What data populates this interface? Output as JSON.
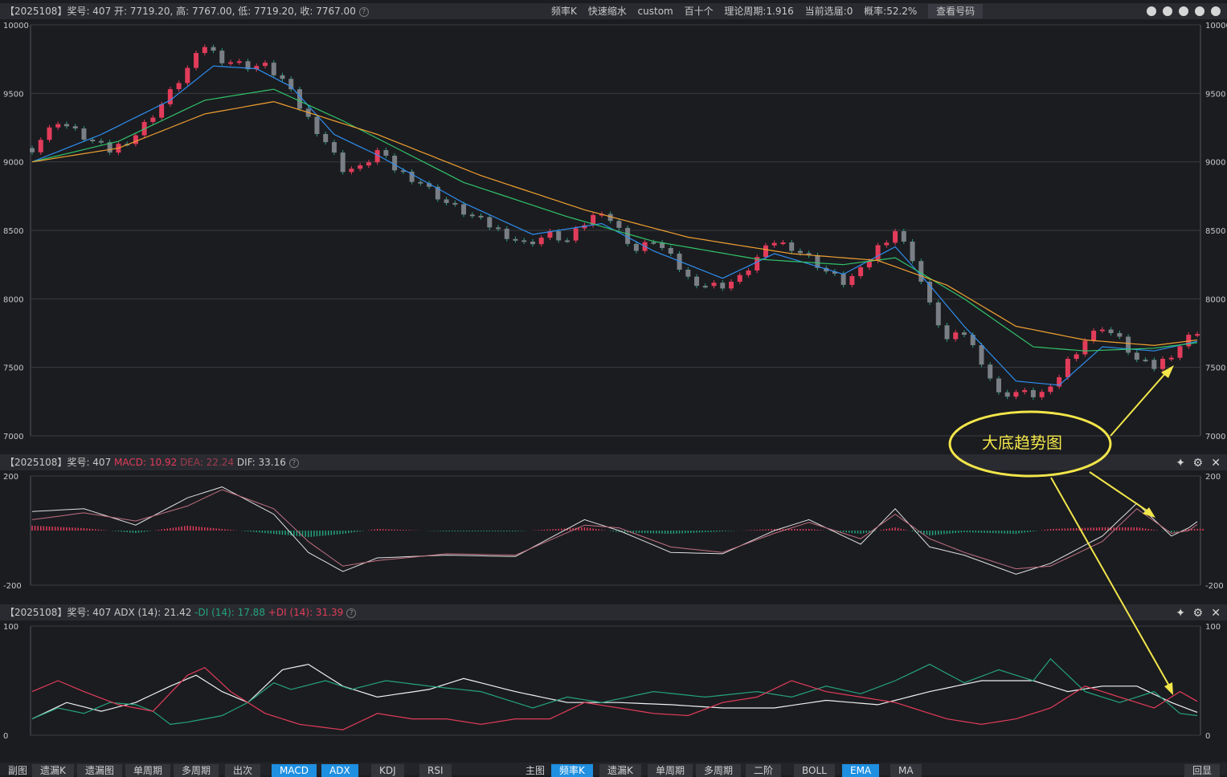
{
  "header_main": {
    "info": "【2025108】奖号: 407   开: 7719.20, 高: 7767.00, 低: 7719.20, 收: 7767.00",
    "help_icon": "question-icon",
    "items": [
      "频率K",
      "快速缩水",
      "custom",
      "百十个",
      "理论周期:1.916",
      "当前选届:0",
      "概率:52.2%"
    ],
    "query_button": "查看号码",
    "icons": [
      "compass-icon",
      "refresh-icon",
      "up-icon",
      "down-icon",
      "settings-icon"
    ]
  },
  "header_macd": {
    "prefix": "【2025108】奖号: 407",
    "macd": "MACD: 10.92",
    "dea": "DEA: 22.24",
    "dif": "DIF: 33.16"
  },
  "header_adx": {
    "prefix": "【2025108】奖号: 407  ADX (14): 21.42",
    "mdi": "-DI (14): 17.88",
    "pdi": "+DI (14): 31.39"
  },
  "annotation": {
    "text": "大底趋势图"
  },
  "bottom_tabs": {
    "left_label": "副图",
    "left": [
      {
        "label": "遗漏K",
        "active": false
      },
      {
        "label": "遗漏图",
        "active": false
      },
      {
        "label": "单周期",
        "active": false
      },
      {
        "label": "多周期",
        "active": false
      },
      {
        "label": "出次",
        "active": false
      },
      {
        "label": "MACD",
        "active": true
      },
      {
        "label": "ADX",
        "active": true
      },
      {
        "label": "KDJ",
        "active": false
      },
      {
        "label": "RSI",
        "active": false
      }
    ],
    "right_label": "主图",
    "right": [
      {
        "label": "频率K",
        "active": true
      },
      {
        "label": "遗漏K",
        "active": false
      },
      {
        "label": "单周期",
        "active": false
      },
      {
        "label": "多周期",
        "active": false
      },
      {
        "label": "二阶",
        "active": false
      },
      {
        "label": "BOLL",
        "active": false
      },
      {
        "label": "EMA",
        "active": true
      },
      {
        "label": "MA",
        "active": false
      }
    ],
    "end": "回显"
  },
  "chart_data": [
    {
      "type": "candlestick",
      "ylim": [
        7000,
        10000
      ],
      "yticks": [
        10000,
        9500,
        9000,
        8500,
        8000,
        7500,
        7000
      ],
      "colors": {
        "up": "#e23c5a",
        "down": "#24a37d",
        "ema_fast": "#2f8ff0",
        "ema_mid": "#30c46a",
        "ema_slow": "#f0a030"
      },
      "close_path": [
        [
          0,
          9100
        ],
        [
          3,
          9300
        ],
        [
          6,
          9180
        ],
        [
          9,
          9080
        ],
        [
          12,
          9200
        ],
        [
          15,
          9420
        ],
        [
          18,
          9680
        ],
        [
          20,
          9850
        ],
        [
          22,
          9750
        ],
        [
          25,
          9700
        ],
        [
          27,
          9700
        ],
        [
          29,
          9600
        ],
        [
          31,
          9400
        ],
        [
          34,
          9150
        ],
        [
          36,
          8950
        ],
        [
          38,
          8950
        ],
        [
          40,
          9080
        ],
        [
          42,
          8950
        ],
        [
          45,
          8850
        ],
        [
          48,
          8700
        ],
        [
          51,
          8600
        ],
        [
          54,
          8500
        ],
        [
          57,
          8400
        ],
        [
          60,
          8470
        ],
        [
          62,
          8420
        ],
        [
          64,
          8550
        ],
        [
          66,
          8650
        ],
        [
          68,
          8500
        ],
        [
          70,
          8350
        ],
        [
          72,
          8430
        ],
        [
          74,
          8300
        ],
        [
          76,
          8150
        ],
        [
          78,
          8100
        ],
        [
          80,
          8100
        ],
        [
          82,
          8150
        ],
        [
          84,
          8300
        ],
        [
          86,
          8420
        ],
        [
          88,
          8380
        ],
        [
          90,
          8300
        ],
        [
          92,
          8200
        ],
        [
          94,
          8120
        ],
        [
          96,
          8200
        ],
        [
          98,
          8380
        ],
        [
          100,
          8500
        ],
        [
          102,
          8300
        ],
        [
          104,
          7950
        ],
        [
          106,
          7700
        ],
        [
          108,
          7750
        ],
        [
          110,
          7550
        ],
        [
          112,
          7300
        ],
        [
          114,
          7320
        ],
        [
          116,
          7300
        ],
        [
          118,
          7330
        ],
        [
          120,
          7550
        ],
        [
          122,
          7700
        ],
        [
          124,
          7800
        ],
        [
          126,
          7700
        ],
        [
          128,
          7550
        ],
        [
          130,
          7500
        ],
        [
          132,
          7600
        ],
        [
          134,
          7720
        ],
        [
          135,
          7767
        ]
      ],
      "ema_fast": [
        [
          0,
          9000
        ],
        [
          8,
          9200
        ],
        [
          16,
          9450
        ],
        [
          21,
          9700
        ],
        [
          26,
          9680
        ],
        [
          30,
          9550
        ],
        [
          35,
          9200
        ],
        [
          40,
          9050
        ],
        [
          50,
          8700
        ],
        [
          58,
          8470
        ],
        [
          66,
          8550
        ],
        [
          72,
          8350
        ],
        [
          80,
          8150
        ],
        [
          86,
          8330
        ],
        [
          94,
          8180
        ],
        [
          100,
          8380
        ],
        [
          104,
          8100
        ],
        [
          108,
          7800
        ],
        [
          114,
          7400
        ],
        [
          119,
          7370
        ],
        [
          124,
          7650
        ],
        [
          130,
          7620
        ],
        [
          135,
          7690
        ]
      ],
      "ema_mid": [
        [
          0,
          9000
        ],
        [
          10,
          9150
        ],
        [
          20,
          9450
        ],
        [
          28,
          9530
        ],
        [
          36,
          9300
        ],
        [
          50,
          8850
        ],
        [
          62,
          8600
        ],
        [
          72,
          8420
        ],
        [
          84,
          8290
        ],
        [
          94,
          8250
        ],
        [
          100,
          8300
        ],
        [
          108,
          8000
        ],
        [
          116,
          7650
        ],
        [
          122,
          7620
        ],
        [
          130,
          7640
        ],
        [
          135,
          7680
        ]
      ],
      "ema_slow": [
        [
          0,
          9000
        ],
        [
          10,
          9100
        ],
        [
          20,
          9350
        ],
        [
          28,
          9440
        ],
        [
          40,
          9200
        ],
        [
          52,
          8900
        ],
        [
          64,
          8650
        ],
        [
          76,
          8450
        ],
        [
          88,
          8330
        ],
        [
          98,
          8280
        ],
        [
          106,
          8100
        ],
        [
          114,
          7800
        ],
        [
          122,
          7700
        ],
        [
          130,
          7660
        ],
        [
          135,
          7700
        ]
      ]
    },
    {
      "type": "line",
      "title": "MACD",
      "ylim": [
        -200,
        200
      ],
      "yticks": [
        200,
        -200
      ],
      "series": [
        {
          "name": "DIF",
          "color": "#e0e0e0",
          "values": [
            [
              0,
              70
            ],
            [
              6,
              80
            ],
            [
              12,
              20
            ],
            [
              18,
              120
            ],
            [
              22,
              160
            ],
            [
              28,
              60
            ],
            [
              32,
              -80
            ],
            [
              36,
              -150
            ],
            [
              40,
              -100
            ],
            [
              48,
              -90
            ],
            [
              56,
              -95
            ],
            [
              64,
              40
            ],
            [
              68,
              0
            ],
            [
              74,
              -80
            ],
            [
              80,
              -85
            ],
            [
              86,
              0
            ],
            [
              90,
              40
            ],
            [
              96,
              -50
            ],
            [
              100,
              80
            ],
            [
              104,
              -60
            ],
            [
              108,
              -90
            ],
            [
              114,
              -160
            ],
            [
              118,
              -120
            ],
            [
              124,
              -20
            ],
            [
              128,
              100
            ],
            [
              132,
              -20
            ],
            [
              134,
              10
            ],
            [
              135,
              33
            ]
          ]
        },
        {
          "name": "DEA",
          "color": "#c07080",
          "values": [
            [
              0,
              40
            ],
            [
              6,
              65
            ],
            [
              12,
              35
            ],
            [
              18,
              90
            ],
            [
              22,
              150
            ],
            [
              28,
              80
            ],
            [
              32,
              -40
            ],
            [
              36,
              -130
            ],
            [
              40,
              -110
            ],
            [
              48,
              -85
            ],
            [
              56,
              -90
            ],
            [
              64,
              20
            ],
            [
              68,
              10
            ],
            [
              74,
              -60
            ],
            [
              80,
              -80
            ],
            [
              86,
              -10
            ],
            [
              90,
              30
            ],
            [
              96,
              -30
            ],
            [
              100,
              60
            ],
            [
              104,
              -30
            ],
            [
              108,
              -80
            ],
            [
              114,
              -140
            ],
            [
              118,
              -130
            ],
            [
              124,
              -40
            ],
            [
              128,
              80
            ],
            [
              132,
              -10
            ],
            [
              134,
              0
            ],
            [
              135,
              22
            ]
          ]
        }
      ]
    },
    {
      "type": "line",
      "title": "ADX",
      "ylim": [
        0,
        100
      ],
      "yticks": [
        100,
        0
      ],
      "series": [
        {
          "name": "ADX",
          "color": "#f0f0f0",
          "values": [
            [
              0,
              15
            ],
            [
              4,
              30
            ],
            [
              8,
              22
            ],
            [
              12,
              30
            ],
            [
              16,
              45
            ],
            [
              19,
              55
            ],
            [
              22,
              40
            ],
            [
              25,
              30
            ],
            [
              29,
              60
            ],
            [
              32,
              65
            ],
            [
              36,
              45
            ],
            [
              40,
              35
            ],
            [
              46,
              42
            ],
            [
              50,
              52
            ],
            [
              56,
              40
            ],
            [
              62,
              30
            ],
            [
              68,
              30
            ],
            [
              74,
              28
            ],
            [
              80,
              25
            ],
            [
              86,
              25
            ],
            [
              92,
              32
            ],
            [
              98,
              28
            ],
            [
              104,
              40
            ],
            [
              110,
              50
            ],
            [
              116,
              50
            ],
            [
              120,
              40
            ],
            [
              124,
              45
            ],
            [
              128,
              45
            ],
            [
              132,
              30
            ],
            [
              135,
              21
            ]
          ]
        },
        {
          "name": "-DI",
          "color": "#24a37d",
          "values": [
            [
              0,
              15
            ],
            [
              3,
              25
            ],
            [
              6,
              20
            ],
            [
              9,
              30
            ],
            [
              12,
              28
            ],
            [
              14,
              22
            ],
            [
              16,
              10
            ],
            [
              18,
              12
            ],
            [
              22,
              18
            ],
            [
              25,
              30
            ],
            [
              28,
              48
            ],
            [
              30,
              42
            ],
            [
              34,
              50
            ],
            [
              37,
              42
            ],
            [
              41,
              50
            ],
            [
              46,
              45
            ],
            [
              52,
              40
            ],
            [
              58,
              25
            ],
            [
              62,
              35
            ],
            [
              66,
              30
            ],
            [
              72,
              40
            ],
            [
              78,
              35
            ],
            [
              84,
              40
            ],
            [
              88,
              35
            ],
            [
              92,
              45
            ],
            [
              96,
              38
            ],
            [
              100,
              50
            ],
            [
              104,
              65
            ],
            [
              108,
              48
            ],
            [
              112,
              60
            ],
            [
              116,
              50
            ],
            [
              118,
              70
            ],
            [
              122,
              40
            ],
            [
              126,
              30
            ],
            [
              130,
              40
            ],
            [
              133,
              20
            ],
            [
              135,
              18
            ]
          ]
        },
        {
          "name": "+DI",
          "color": "#e23c5a",
          "values": [
            [
              0,
              40
            ],
            [
              3,
              50
            ],
            [
              6,
              40
            ],
            [
              10,
              28
            ],
            [
              14,
              22
            ],
            [
              18,
              55
            ],
            [
              20,
              62
            ],
            [
              23,
              40
            ],
            [
              27,
              20
            ],
            [
              31,
              10
            ],
            [
              36,
              5
            ],
            [
              40,
              20
            ],
            [
              44,
              15
            ],
            [
              48,
              15
            ],
            [
              52,
              10
            ],
            [
              56,
              15
            ],
            [
              60,
              15
            ],
            [
              64,
              30
            ],
            [
              68,
              25
            ],
            [
              72,
              20
            ],
            [
              76,
              18
            ],
            [
              80,
              30
            ],
            [
              84,
              35
            ],
            [
              88,
              50
            ],
            [
              92,
              40
            ],
            [
              96,
              35
            ],
            [
              100,
              30
            ],
            [
              106,
              15
            ],
            [
              110,
              10
            ],
            [
              114,
              15
            ],
            [
              118,
              25
            ],
            [
              122,
              45
            ],
            [
              126,
              35
            ],
            [
              130,
              25
            ],
            [
              133,
              40
            ],
            [
              135,
              31
            ]
          ]
        }
      ]
    }
  ]
}
